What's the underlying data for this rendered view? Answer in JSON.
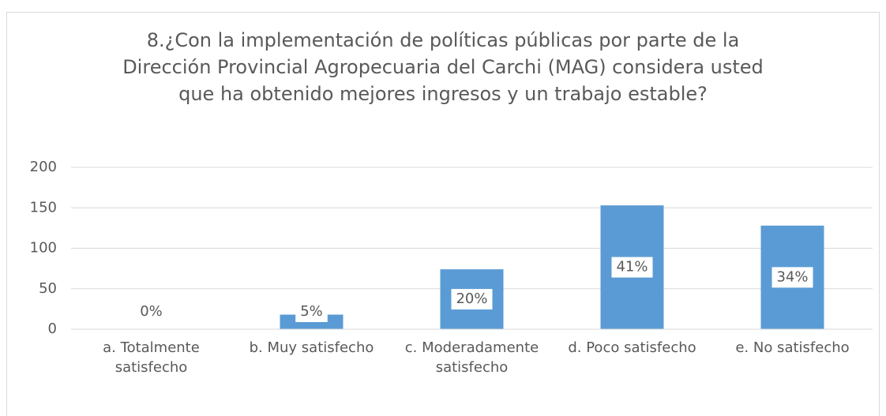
{
  "chart_data": {
    "type": "bar",
    "title": "8.¿Con la implementación de políticas públicas por parte de la Dirección Provincial Agropecuaria del Carchi (MAG) considera usted que ha obtenido mejores ingresos y un trabajo estable?",
    "categories": [
      "a. Totalmente satisfecho",
      "b. Muy satisfecho",
      "c. Moderadamente satisfecho",
      "d. Poco satisfecho",
      "e. No satisfecho"
    ],
    "values": [
      0,
      18,
      74,
      153,
      128
    ],
    "percent_labels": [
      "0%",
      "5%",
      "20%",
      "41%",
      "34%"
    ],
    "color": "#5b9bd5",
    "ylim": [
      0,
      200
    ],
    "yticks": [
      0,
      50,
      100,
      150,
      200
    ],
    "grid": true
  }
}
